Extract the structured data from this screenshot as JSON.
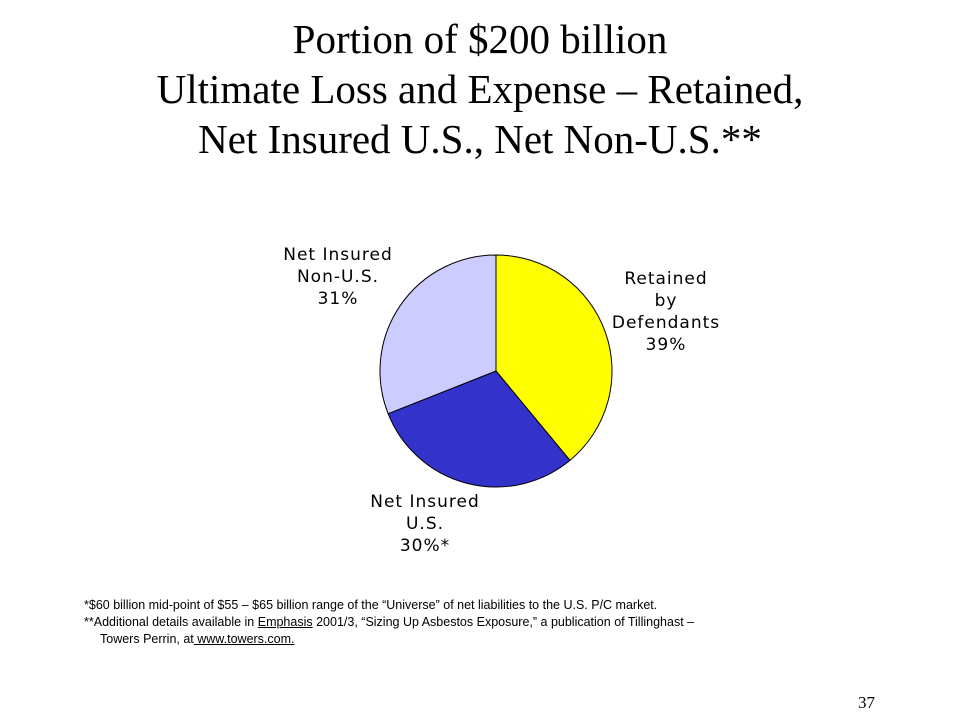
{
  "chart_data": {
    "type": "pie",
    "title_lines": [
      "Portion of $200 billion",
      "Ultimate Loss and Expense – Retained,",
      "Net Insured U.S., Net Non-U.S.**"
    ],
    "slices": [
      {
        "label_lines": [
          "Retained",
          "by",
          "Defendants",
          "39%"
        ],
        "value": 39,
        "color": "#ffff00"
      },
      {
        "label_lines": [
          "Net Insured",
          "U.S.",
          "30%*"
        ],
        "value": 30,
        "color": "#3333cc"
      },
      {
        "label_lines": [
          "Net Insured",
          "Non-U.S.",
          "31%"
        ],
        "value": 31,
        "color": "#ccccff"
      }
    ]
  },
  "footnotes": {
    "note1": "*$60 billion mid-point of $55 – $65 billion range of the “Universe” of net liabilities to the U.S. P/C market.",
    "note2_prefix": "**Additional details available in ",
    "note2_link": "Emphasis",
    "note2_suffix": " 2001/3, “Sizing Up Asbestos Exposure,” a publication of Tillinghast –",
    "note3_prefix": "Towers Perrin, at",
    "note3_link": " www.towers.com."
  },
  "page_number": "37"
}
